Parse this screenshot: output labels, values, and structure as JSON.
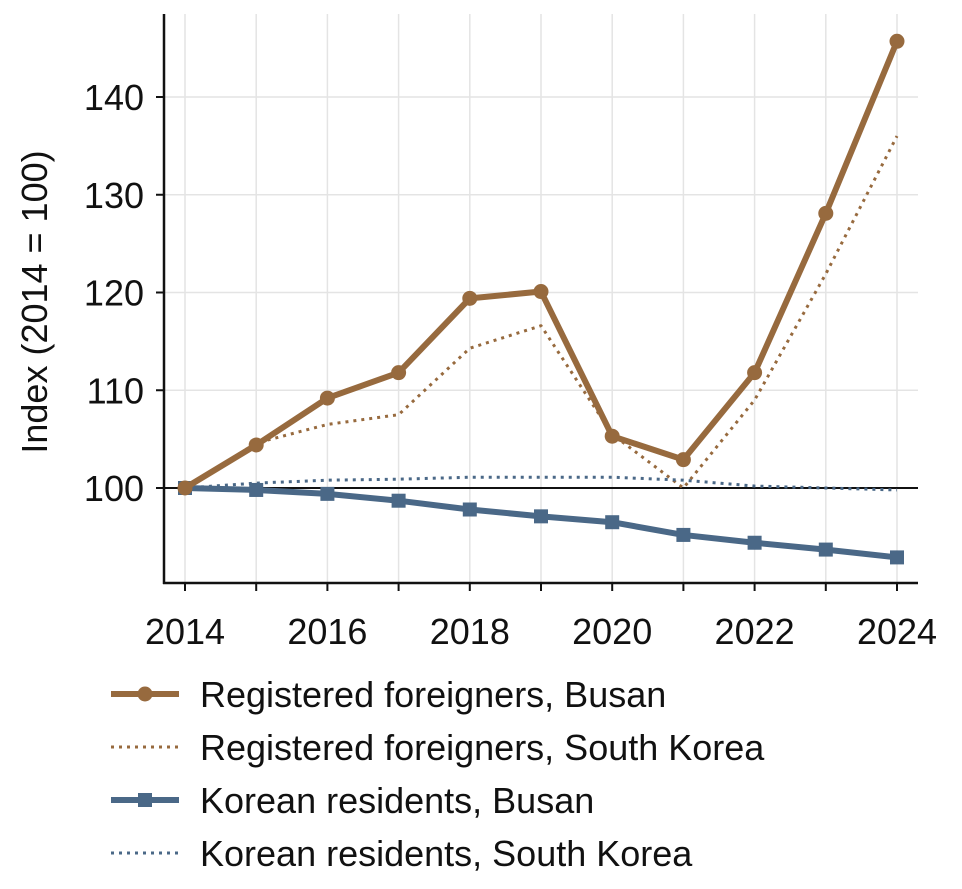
{
  "chart_data": {
    "type": "line",
    "title": "",
    "xlabel": "",
    "ylabel": "Index (2014 = 100)",
    "x": [
      2014,
      2015,
      2016,
      2017,
      2018,
      2019,
      2020,
      2021,
      2022,
      2023,
      2024
    ],
    "xticks": [
      2014,
      2016,
      2018,
      2020,
      2022,
      2024
    ],
    "yticks": [
      100,
      110,
      120,
      130,
      140
    ],
    "xlim": [
      2013.7,
      2024.3
    ],
    "ylim": [
      90.5,
      148.5
    ],
    "reference_line": 100,
    "grid": true,
    "legend_position": "bottom",
    "series": [
      {
        "name": "Registered foreigners, Busan",
        "color": "#976a3e",
        "style": "solid",
        "marker": "circle",
        "values": [
          100.0,
          104.4,
          109.2,
          111.8,
          119.4,
          120.1,
          105.3,
          102.9,
          111.8,
          128.1,
          145.7
        ]
      },
      {
        "name": "Registered foreigners, South Korea",
        "color": "#976a3e",
        "style": "dotted",
        "marker": "none",
        "values": [
          100.0,
          104.6,
          106.5,
          107.5,
          114.3,
          116.6,
          105.5,
          100.0,
          109.0,
          121.9,
          136.0
        ]
      },
      {
        "name": "Korean residents, Busan",
        "color": "#4a6887",
        "style": "solid",
        "marker": "square",
        "values": [
          100.0,
          99.8,
          99.4,
          98.7,
          97.8,
          97.1,
          96.5,
          95.2,
          94.4,
          93.7,
          92.9
        ]
      },
      {
        "name": "Korean residents, South Korea",
        "color": "#4a6887",
        "style": "dotted",
        "marker": "none",
        "values": [
          100.0,
          100.5,
          100.8,
          100.9,
          101.1,
          101.1,
          101.1,
          100.8,
          100.2,
          100.0,
          99.8
        ]
      }
    ]
  }
}
